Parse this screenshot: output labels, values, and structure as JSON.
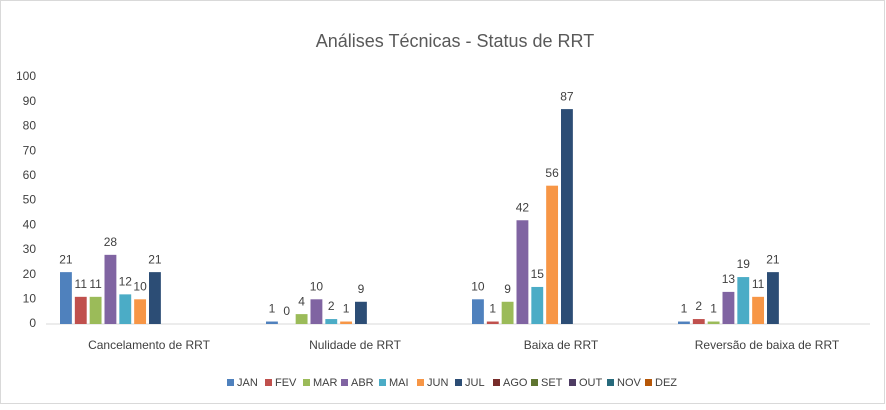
{
  "chart_data": {
    "type": "bar",
    "title": "Análises Técnicas - Status de RRT",
    "categories": [
      "Cancelamento de RRT",
      "Nulidade de RRT",
      "Baixa de RRT",
      "Reversão de baixa de RRT"
    ],
    "series": [
      {
        "name": "JAN",
        "color": "#4f81bd",
        "values": [
          21,
          1,
          10,
          1
        ]
      },
      {
        "name": "FEV",
        "color": "#c0504d",
        "values": [
          11,
          0,
          1,
          2
        ]
      },
      {
        "name": "MAR",
        "color": "#9bbb59",
        "values": [
          11,
          4,
          9,
          1
        ]
      },
      {
        "name": "ABR",
        "color": "#8064a2",
        "values": [
          28,
          10,
          42,
          13
        ]
      },
      {
        "name": "MAI",
        "color": "#4bacc6",
        "values": [
          12,
          2,
          15,
          19
        ]
      },
      {
        "name": "JUN",
        "color": "#f79646",
        "values": [
          10,
          1,
          56,
          11
        ]
      },
      {
        "name": "JUL",
        "color": "#2c4d75",
        "values": [
          21,
          9,
          87,
          21
        ]
      },
      {
        "name": "AGO",
        "color": "#772c2a",
        "values": [
          null,
          null,
          null,
          null
        ]
      },
      {
        "name": "SET",
        "color": "#5f7530",
        "values": [
          null,
          null,
          null,
          null
        ]
      },
      {
        "name": "OUT",
        "color": "#4d3b62",
        "values": [
          null,
          null,
          null,
          null
        ]
      },
      {
        "name": "NOV",
        "color": "#276a7c",
        "values": [
          null,
          null,
          null,
          null
        ]
      },
      {
        "name": "DEZ",
        "color": "#b65708",
        "values": [
          null,
          null,
          null,
          null
        ]
      }
    ],
    "ylim": [
      0,
      100
    ],
    "yticks": [
      0,
      10,
      20,
      30,
      40,
      50,
      60,
      70,
      80,
      90,
      100
    ],
    "grid": false,
    "legend": "bottom"
  }
}
